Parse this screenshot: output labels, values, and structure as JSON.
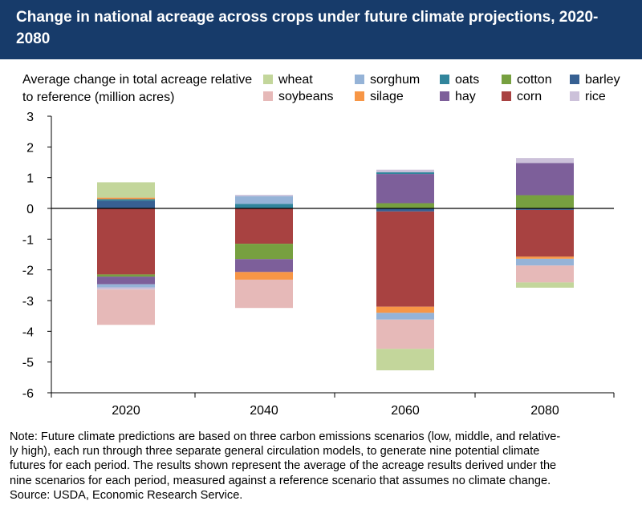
{
  "title": "Change in national acreage across crops under future climate projections, 2020-2080",
  "note_lines": [
    "Note: Future climate predictions are based on three carbon emissions scenarios (low, middle, and relative-",
    "ly high), each run through three separate general circulation models, to generate nine potential climate",
    "futures for each period. The results shown represent the average of the acreage results derived under the",
    "nine scenarios for each period, measured against a reference scenario that assumes no climate change.",
    "Source: USDA, Economic Research Service."
  ],
  "chart_data": {
    "type": "bar",
    "stacked": true,
    "title": "Change in national acreage across crops under future climate projections, 2020-2080",
    "ylabel": "Average change in total acreage relative to reference (million acres)",
    "xlabel": "",
    "categories": [
      "2020",
      "2040",
      "2060",
      "2080"
    ],
    "ylim": [
      -6,
      3
    ],
    "yticks": [
      3,
      2,
      1,
      0,
      -1,
      -2,
      -3,
      -4,
      -5,
      -6
    ],
    "legend_position": "top-right",
    "series": [
      {
        "name": "wheat",
        "color": "#c3d69b",
        "values": [
          0.5,
          0.0,
          -0.7,
          -0.17
        ]
      },
      {
        "name": "soybeans",
        "color": "#e6b9b8",
        "values": [
          -1.15,
          -0.92,
          -0.95,
          -0.55
        ]
      },
      {
        "name": "sorghum",
        "color": "#95b3d7",
        "values": [
          -0.1,
          0.25,
          -0.22,
          -0.22
        ]
      },
      {
        "name": "silage",
        "color": "#f79646",
        "values": [
          0.05,
          -0.25,
          -0.2,
          -0.07
        ]
      },
      {
        "name": "oats",
        "color": "#31859c",
        "values": [
          0.05,
          0.15,
          0.06,
          0.0
        ]
      },
      {
        "name": "hay",
        "color": "#7d5f9a",
        "values": [
          -0.25,
          -0.42,
          0.95,
          1.05
        ]
      },
      {
        "name": "cotton",
        "color": "#77a040",
        "values": [
          -0.07,
          -0.5,
          0.17,
          0.43
        ]
      },
      {
        "name": "corn",
        "color": "#a84241",
        "values": [
          -2.15,
          -1.15,
          -3.1,
          -1.52
        ]
      },
      {
        "name": "barley",
        "color": "#376092",
        "values": [
          0.25,
          0.0,
          -0.1,
          -0.05
        ]
      },
      {
        "name": "rice",
        "color": "#ccc1da",
        "values": [
          -0.07,
          0.04,
          0.08,
          0.16
        ]
      }
    ],
    "legend_order": [
      "wheat",
      "sorghum",
      "oats",
      "cotton",
      "barley",
      "soybeans",
      "silage",
      "hay",
      "corn",
      "rice"
    ],
    "stack_order_positive": [
      "barley",
      "cotton",
      "hay",
      "oats",
      "sorghum",
      "silage",
      "rice",
      "wheat"
    ],
    "stack_order_negative": [
      "barley",
      "corn",
      "cotton",
      "hay",
      "silage",
      "sorghum",
      "rice",
      "soybeans",
      "wheat"
    ]
  }
}
